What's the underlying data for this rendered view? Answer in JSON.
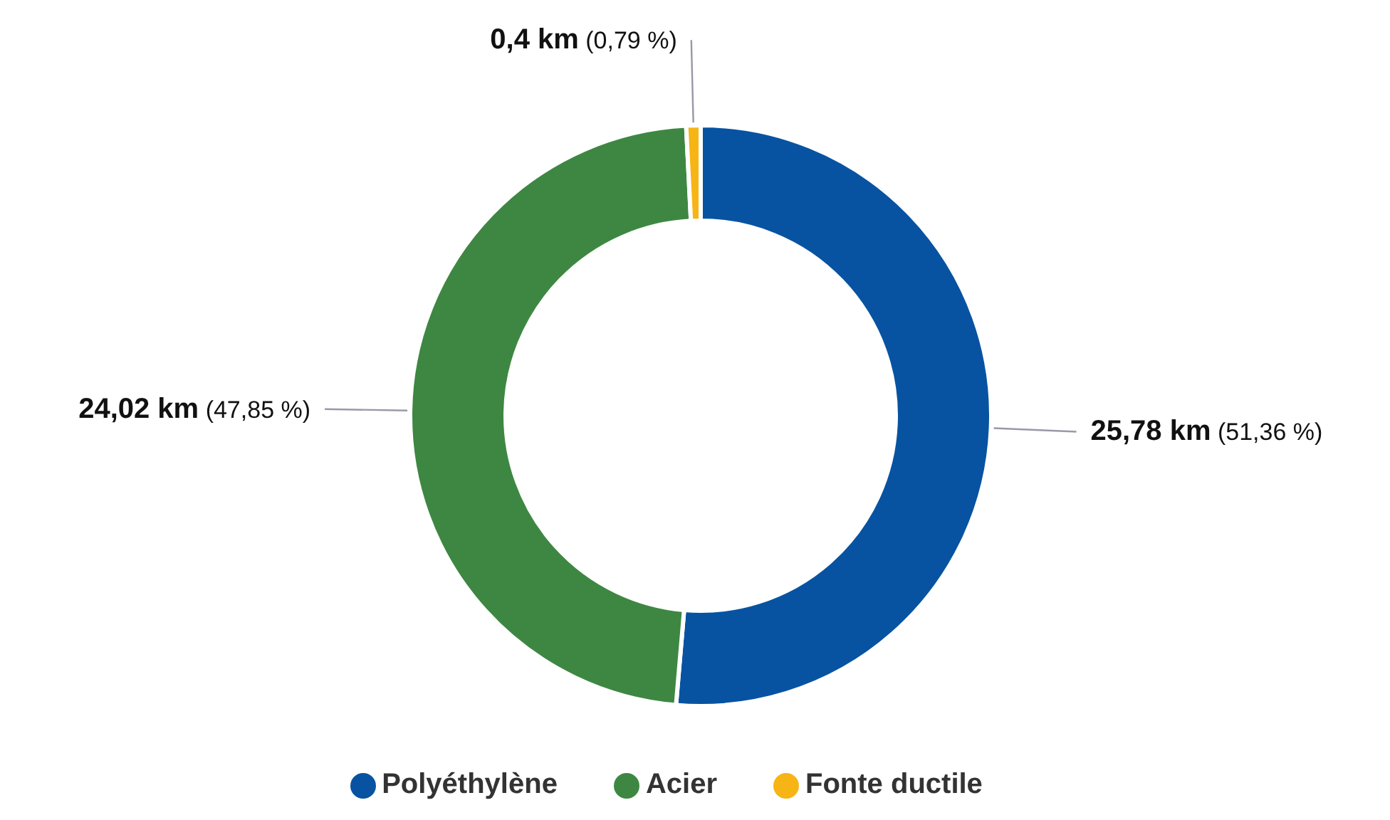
{
  "chart_data": {
    "type": "donut",
    "categories": [
      "Polyéthylène",
      "Acier",
      "Fonte ductile"
    ],
    "values": [
      25.78,
      24.02,
      0.4
    ],
    "colors": [
      "#0753a1",
      "#3e8742",
      "#f7b415"
    ],
    "value_labels": [
      "25,78 km (51,36 %)",
      "24,02 km (47,85 %)",
      "0,4 km (0,79 %)"
    ],
    "legend": "bottom"
  }
}
